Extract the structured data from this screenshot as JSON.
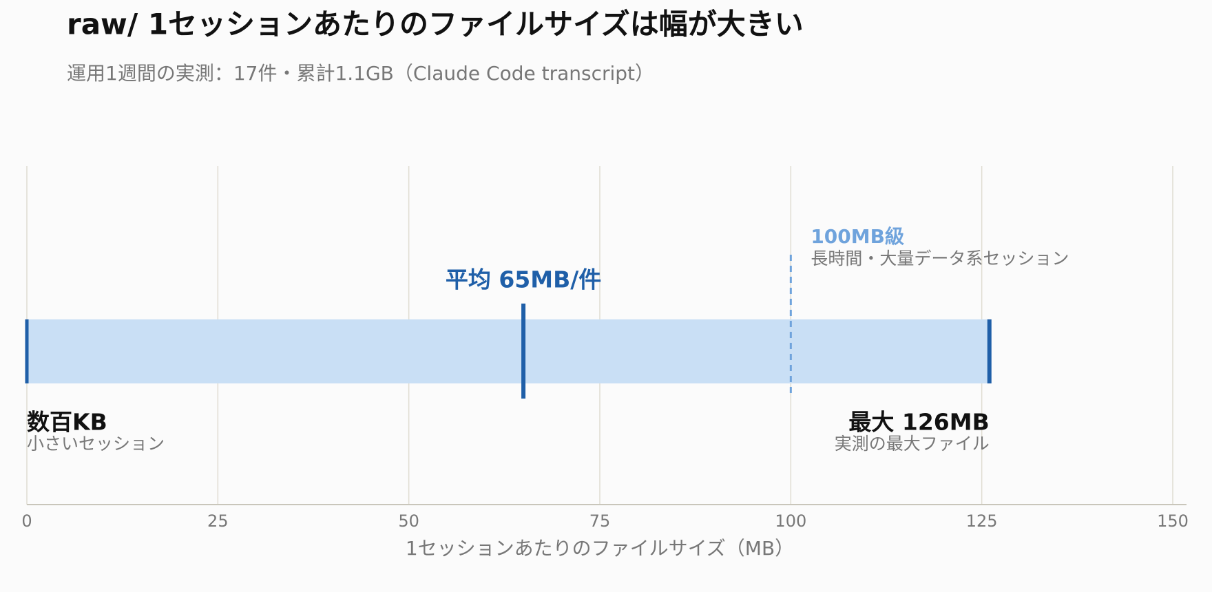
{
  "chart_data": {
    "type": "range",
    "title": "raw/ 1セッションあたりのファイルサイズは幅が大きい",
    "subtitle": "運用1週間の実測：17件・累計1.1GB（Claude Code transcript）",
    "xlabel": "1セッションあたりのファイルサイズ（MB）",
    "xlim": [
      0,
      150
    ],
    "xticks": [
      0,
      25,
      50,
      75,
      100,
      125,
      150
    ],
    "grid": true,
    "min": 0,
    "max": 126,
    "mean": 65,
    "reference": 100,
    "bar_color": "#c9dff5",
    "marker_color": "#1f5fa8",
    "reference_color": "#6fa3dc",
    "annotations": {
      "mean": {
        "label": "平均 65MB/件"
      },
      "reference": {
        "label": "100MB級",
        "note": "長時間・大量データ系セッション"
      },
      "min": {
        "label": "数百KB",
        "note": "小さいセッション"
      },
      "max": {
        "label": "最大 126MB",
        "note": "実測の最大ファイル"
      }
    }
  }
}
